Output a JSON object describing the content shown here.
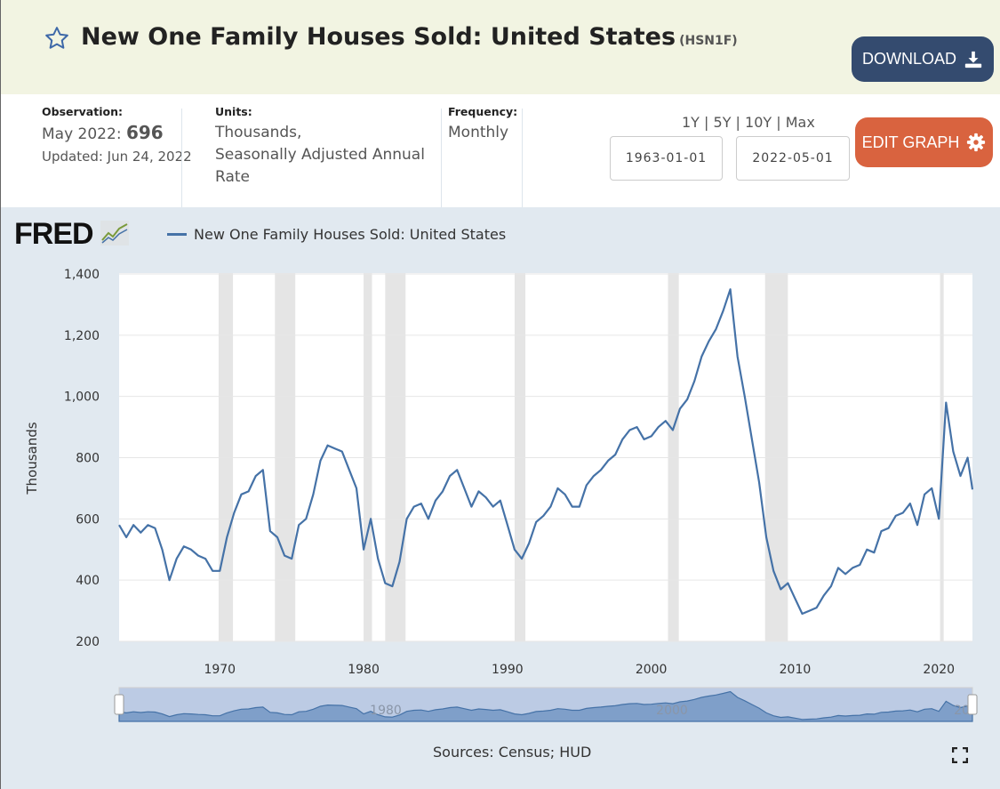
{
  "header": {
    "title": "New One Family Houses Sold: United States",
    "series_id": "(HSN1F)",
    "download_label": "DOWNLOAD",
    "star_icon": "star-outline-icon",
    "download_icon": "download-icon"
  },
  "info": {
    "observation_label": "Observation:",
    "observation_period": "May 2022:",
    "observation_value": "696",
    "updated": "Updated: Jun 24, 2022",
    "units_label": "Units:",
    "units_line1": "Thousands,",
    "units_line2": "Seasonally Adjusted Annual",
    "units_line3": "Rate",
    "frequency_label": "Frequency:",
    "frequency_value": "Monthly"
  },
  "controls": {
    "ranges": [
      "1Y",
      "5Y",
      "10Y",
      "Max"
    ],
    "start_date": "1963-01-01",
    "end_date": "2022-05-01",
    "edit_label": "EDIT GRAPH",
    "edit_icon": "gear-icon"
  },
  "colors": {
    "series": "#4572a7",
    "recession": "#e5e5e5",
    "download_button": "#344b6f",
    "edit_button": "#d9633f",
    "chart_background": "#e1e9f0"
  },
  "footer": {
    "sources": "Sources: Census; HUD",
    "fullscreen_icon": "fullscreen-icon"
  },
  "chart_data": {
    "type": "line",
    "logo": "FRED",
    "legend": "New One Family Houses Sold: United States",
    "ylabel": "Thousands",
    "ylim": [
      200,
      1400
    ],
    "yticks": [
      "200",
      "400",
      "600",
      "800",
      "1,000",
      "1,200",
      "1,400"
    ],
    "xticks": [
      "1970",
      "1980",
      "1990",
      "2000",
      "2010",
      "2020"
    ],
    "xlim": [
      "1963-01",
      "2022-05"
    ],
    "grid": "horizontal",
    "recessions": [
      [
        "1969-12",
        "1970-11"
      ],
      [
        "1973-11",
        "1975-03"
      ],
      [
        "1980-01",
        "1980-07"
      ],
      [
        "1981-07",
        "1982-11"
      ],
      [
        "1990-07",
        "1991-03"
      ],
      [
        "2001-03",
        "2001-11"
      ],
      [
        "2007-12",
        "2009-06"
      ],
      [
        "2020-02",
        "2020-04"
      ]
    ],
    "navigator_labels": [
      "1980",
      "2000",
      "20"
    ],
    "series": [
      {
        "name": "New One Family Houses Sold: United States",
        "x": [
          "1963-01",
          "1963-07",
          "1964-01",
          "1964-07",
          "1965-01",
          "1965-07",
          "1966-01",
          "1966-07",
          "1967-01",
          "1967-07",
          "1968-01",
          "1968-07",
          "1969-01",
          "1969-07",
          "1970-01",
          "1970-07",
          "1971-01",
          "1971-07",
          "1972-01",
          "1972-07",
          "1973-01",
          "1973-07",
          "1974-01",
          "1974-07",
          "1975-01",
          "1975-07",
          "1976-01",
          "1976-07",
          "1977-01",
          "1977-07",
          "1978-01",
          "1978-07",
          "1979-01",
          "1979-07",
          "1980-01",
          "1980-07",
          "1981-01",
          "1981-07",
          "1982-01",
          "1982-07",
          "1983-01",
          "1983-07",
          "1984-01",
          "1984-07",
          "1985-01",
          "1985-07",
          "1986-01",
          "1986-07",
          "1987-01",
          "1987-07",
          "1988-01",
          "1988-07",
          "1989-01",
          "1989-07",
          "1990-01",
          "1990-07",
          "1991-01",
          "1991-07",
          "1992-01",
          "1992-07",
          "1993-01",
          "1993-07",
          "1994-01",
          "1994-07",
          "1995-01",
          "1995-07",
          "1996-01",
          "1996-07",
          "1997-01",
          "1997-07",
          "1998-01",
          "1998-07",
          "1999-01",
          "1999-07",
          "2000-01",
          "2000-07",
          "2001-01",
          "2001-07",
          "2002-01",
          "2002-07",
          "2003-01",
          "2003-07",
          "2004-01",
          "2004-07",
          "2005-01",
          "2005-07",
          "2006-01",
          "2006-07",
          "2007-01",
          "2007-07",
          "2008-01",
          "2008-07",
          "2009-01",
          "2009-07",
          "2010-01",
          "2010-07",
          "2011-01",
          "2011-07",
          "2012-01",
          "2012-07",
          "2013-01",
          "2013-07",
          "2014-01",
          "2014-07",
          "2015-01",
          "2015-07",
          "2016-01",
          "2016-07",
          "2017-01",
          "2017-07",
          "2018-01",
          "2018-07",
          "2019-01",
          "2019-07",
          "2020-01",
          "2020-07",
          "2021-01",
          "2021-07",
          "2022-01",
          "2022-05"
        ],
        "values": [
          580,
          540,
          580,
          555,
          580,
          570,
          500,
          400,
          470,
          510,
          500,
          480,
          470,
          430,
          430,
          540,
          620,
          680,
          690,
          740,
          760,
          560,
          540,
          480,
          470,
          580,
          600,
          680,
          790,
          840,
          830,
          820,
          760,
          700,
          500,
          600,
          470,
          390,
          380,
          460,
          600,
          640,
          650,
          600,
          660,
          690,
          740,
          760,
          700,
          640,
          690,
          670,
          640,
          660,
          580,
          500,
          470,
          520,
          590,
          610,
          640,
          700,
          680,
          640,
          640,
          710,
          740,
          760,
          790,
          810,
          860,
          890,
          900,
          860,
          870,
          900,
          920,
          890,
          960,
          990,
          1050,
          1130,
          1180,
          1220,
          1280,
          1350,
          1130,
          1000,
          860,
          720,
          540,
          430,
          370,
          390,
          340,
          290,
          300,
          310,
          350,
          380,
          440,
          420,
          440,
          450,
          500,
          490,
          560,
          570,
          610,
          620,
          650,
          580,
          680,
          700,
          600,
          980,
          820,
          740,
          800,
          696
        ]
      }
    ]
  }
}
